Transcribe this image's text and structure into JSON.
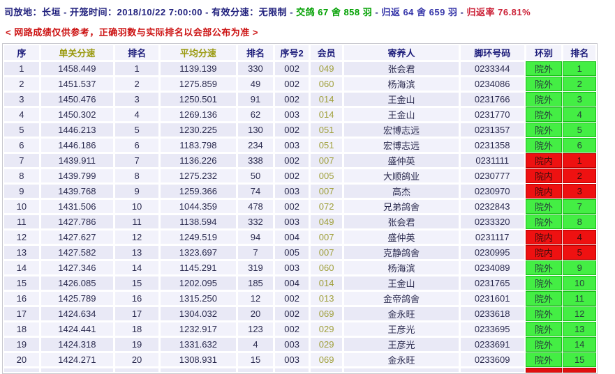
{
  "header": {
    "release_info": "司放地：长垣 - 开笼时间：2018/10/22 7:00:00 - 有效分速：无限制",
    "sep1": " - ",
    "sent": "交鸽 67 舍 858 羽",
    "sep2": " - ",
    "returned": "归返 64 舍 659 羽",
    "sep3": " - ",
    "return_rate": "归返率 76.81%",
    "notice": "< 网路成绩仅供参考，正确羽数与实际排名以会部公布为准 >"
  },
  "colors": {
    "navy_text": "#22227e",
    "sent_green": "#00a000",
    "rate_red": "#cc2238",
    "notice_red": "#cc1111",
    "zone_out_bg": "#44ee44",
    "zone_in_bg": "#ee1111",
    "row_bg": "#e9e9f6",
    "member_olive": "#a0a03c"
  },
  "table": {
    "columns": [
      {
        "key": "seq",
        "label": "序"
      },
      {
        "key": "single_speed",
        "label": "单关分速"
      },
      {
        "key": "single_rank",
        "label": "排名"
      },
      {
        "key": "avg_speed",
        "label": "平均分速"
      },
      {
        "key": "avg_rank",
        "label": "排名"
      },
      {
        "key": "seq2",
        "label": "序号2"
      },
      {
        "key": "member",
        "label": "会员"
      },
      {
        "key": "keeper",
        "label": "寄养人"
      },
      {
        "key": "ring",
        "label": "脚环号码"
      },
      {
        "key": "ring_type",
        "label": "环别"
      },
      {
        "key": "zone_rank",
        "label": "排名"
      }
    ],
    "rows": [
      {
        "seq": "1",
        "single_speed": "1458.449",
        "single_rank": "1",
        "avg_speed": "1139.139",
        "avg_rank": "330",
        "seq2": "002",
        "member": "049",
        "keeper": "张会君",
        "ring": "0233344",
        "ring_type": "院外",
        "zone_rank": "1",
        "zone": "out"
      },
      {
        "seq": "2",
        "single_speed": "1451.537",
        "single_rank": "2",
        "avg_speed": "1275.859",
        "avg_rank": "49",
        "seq2": "002",
        "member": "060",
        "keeper": "杨海滨",
        "ring": "0234086",
        "ring_type": "院外",
        "zone_rank": "2",
        "zone": "out"
      },
      {
        "seq": "3",
        "single_speed": "1450.476",
        "single_rank": "3",
        "avg_speed": "1250.501",
        "avg_rank": "91",
        "seq2": "002",
        "member": "014",
        "keeper": "王金山",
        "ring": "0231766",
        "ring_type": "院外",
        "zone_rank": "3",
        "zone": "out"
      },
      {
        "seq": "4",
        "single_speed": "1450.302",
        "single_rank": "4",
        "avg_speed": "1269.136",
        "avg_rank": "62",
        "seq2": "003",
        "member": "014",
        "keeper": "王金山",
        "ring": "0231770",
        "ring_type": "院外",
        "zone_rank": "4",
        "zone": "out"
      },
      {
        "seq": "5",
        "single_speed": "1446.213",
        "single_rank": "5",
        "avg_speed": "1230.225",
        "avg_rank": "130",
        "seq2": "002",
        "member": "051",
        "keeper": "宏博志远",
        "ring": "0231357",
        "ring_type": "院外",
        "zone_rank": "5",
        "zone": "out"
      },
      {
        "seq": "6",
        "single_speed": "1446.186",
        "single_rank": "6",
        "avg_speed": "1183.798",
        "avg_rank": "234",
        "seq2": "003",
        "member": "051",
        "keeper": "宏博志远",
        "ring": "0231358",
        "ring_type": "院外",
        "zone_rank": "6",
        "zone": "out"
      },
      {
        "seq": "7",
        "single_speed": "1439.911",
        "single_rank": "7",
        "avg_speed": "1136.226",
        "avg_rank": "338",
        "seq2": "002",
        "member": "007",
        "keeper": "盛仲英",
        "ring": "0231111",
        "ring_type": "院内",
        "zone_rank": "1",
        "zone": "in"
      },
      {
        "seq": "8",
        "single_speed": "1439.799",
        "single_rank": "8",
        "avg_speed": "1275.232",
        "avg_rank": "50",
        "seq2": "002",
        "member": "005",
        "keeper": "大顺鸽业",
        "ring": "0230777",
        "ring_type": "院内",
        "zone_rank": "2",
        "zone": "in"
      },
      {
        "seq": "9",
        "single_speed": "1439.768",
        "single_rank": "9",
        "avg_speed": "1259.366",
        "avg_rank": "74",
        "seq2": "003",
        "member": "007",
        "keeper": "高杰",
        "ring": "0230970",
        "ring_type": "院内",
        "zone_rank": "3",
        "zone": "in"
      },
      {
        "seq": "10",
        "single_speed": "1431.506",
        "single_rank": "10",
        "avg_speed": "1044.359",
        "avg_rank": "478",
        "seq2": "002",
        "member": "072",
        "keeper": "兄弟鸽舍",
        "ring": "0232843",
        "ring_type": "院外",
        "zone_rank": "7",
        "zone": "out"
      },
      {
        "seq": "11",
        "single_speed": "1427.786",
        "single_rank": "11",
        "avg_speed": "1138.594",
        "avg_rank": "332",
        "seq2": "003",
        "member": "049",
        "keeper": "张会君",
        "ring": "0233320",
        "ring_type": "院外",
        "zone_rank": "8",
        "zone": "out"
      },
      {
        "seq": "12",
        "single_speed": "1427.627",
        "single_rank": "12",
        "avg_speed": "1249.519",
        "avg_rank": "94",
        "seq2": "004",
        "member": "007",
        "keeper": "盛仲英",
        "ring": "0231117",
        "ring_type": "院内",
        "zone_rank": "4",
        "zone": "in"
      },
      {
        "seq": "13",
        "single_speed": "1427.582",
        "single_rank": "13",
        "avg_speed": "1323.697",
        "avg_rank": "7",
        "seq2": "005",
        "member": "007",
        "keeper": "克静鸽舍",
        "ring": "0230995",
        "ring_type": "院内",
        "zone_rank": "5",
        "zone": "in"
      },
      {
        "seq": "14",
        "single_speed": "1427.346",
        "single_rank": "14",
        "avg_speed": "1145.291",
        "avg_rank": "319",
        "seq2": "003",
        "member": "060",
        "keeper": "杨海滨",
        "ring": "0234089",
        "ring_type": "院外",
        "zone_rank": "9",
        "zone": "out"
      },
      {
        "seq": "15",
        "single_speed": "1426.085",
        "single_rank": "15",
        "avg_speed": "1202.095",
        "avg_rank": "185",
        "seq2": "004",
        "member": "014",
        "keeper": "王金山",
        "ring": "0231765",
        "ring_type": "院外",
        "zone_rank": "10",
        "zone": "out"
      },
      {
        "seq": "16",
        "single_speed": "1425.789",
        "single_rank": "16",
        "avg_speed": "1315.250",
        "avg_rank": "12",
        "seq2": "002",
        "member": "013",
        "keeper": "金帝鸽舍",
        "ring": "0231601",
        "ring_type": "院外",
        "zone_rank": "11",
        "zone": "out"
      },
      {
        "seq": "17",
        "single_speed": "1424.634",
        "single_rank": "17",
        "avg_speed": "1304.032",
        "avg_rank": "20",
        "seq2": "002",
        "member": "069",
        "keeper": "金永旺",
        "ring": "0233618",
        "ring_type": "院外",
        "zone_rank": "12",
        "zone": "out"
      },
      {
        "seq": "18",
        "single_speed": "1424.441",
        "single_rank": "18",
        "avg_speed": "1232.917",
        "avg_rank": "123",
        "seq2": "002",
        "member": "029",
        "keeper": "王彦光",
        "ring": "0233695",
        "ring_type": "院外",
        "zone_rank": "13",
        "zone": "out"
      },
      {
        "seq": "19",
        "single_speed": "1424.318",
        "single_rank": "19",
        "avg_speed": "1331.632",
        "avg_rank": "4",
        "seq2": "003",
        "member": "029",
        "keeper": "王彦光",
        "ring": "0233691",
        "ring_type": "院外",
        "zone_rank": "14",
        "zone": "out"
      },
      {
        "seq": "20",
        "single_speed": "1424.271",
        "single_rank": "20",
        "avg_speed": "1308.931",
        "avg_rank": "15",
        "seq2": "003",
        "member": "069",
        "keeper": "金永旺",
        "ring": "0233609",
        "ring_type": "院外",
        "zone_rank": "15",
        "zone": "out"
      }
    ]
  }
}
